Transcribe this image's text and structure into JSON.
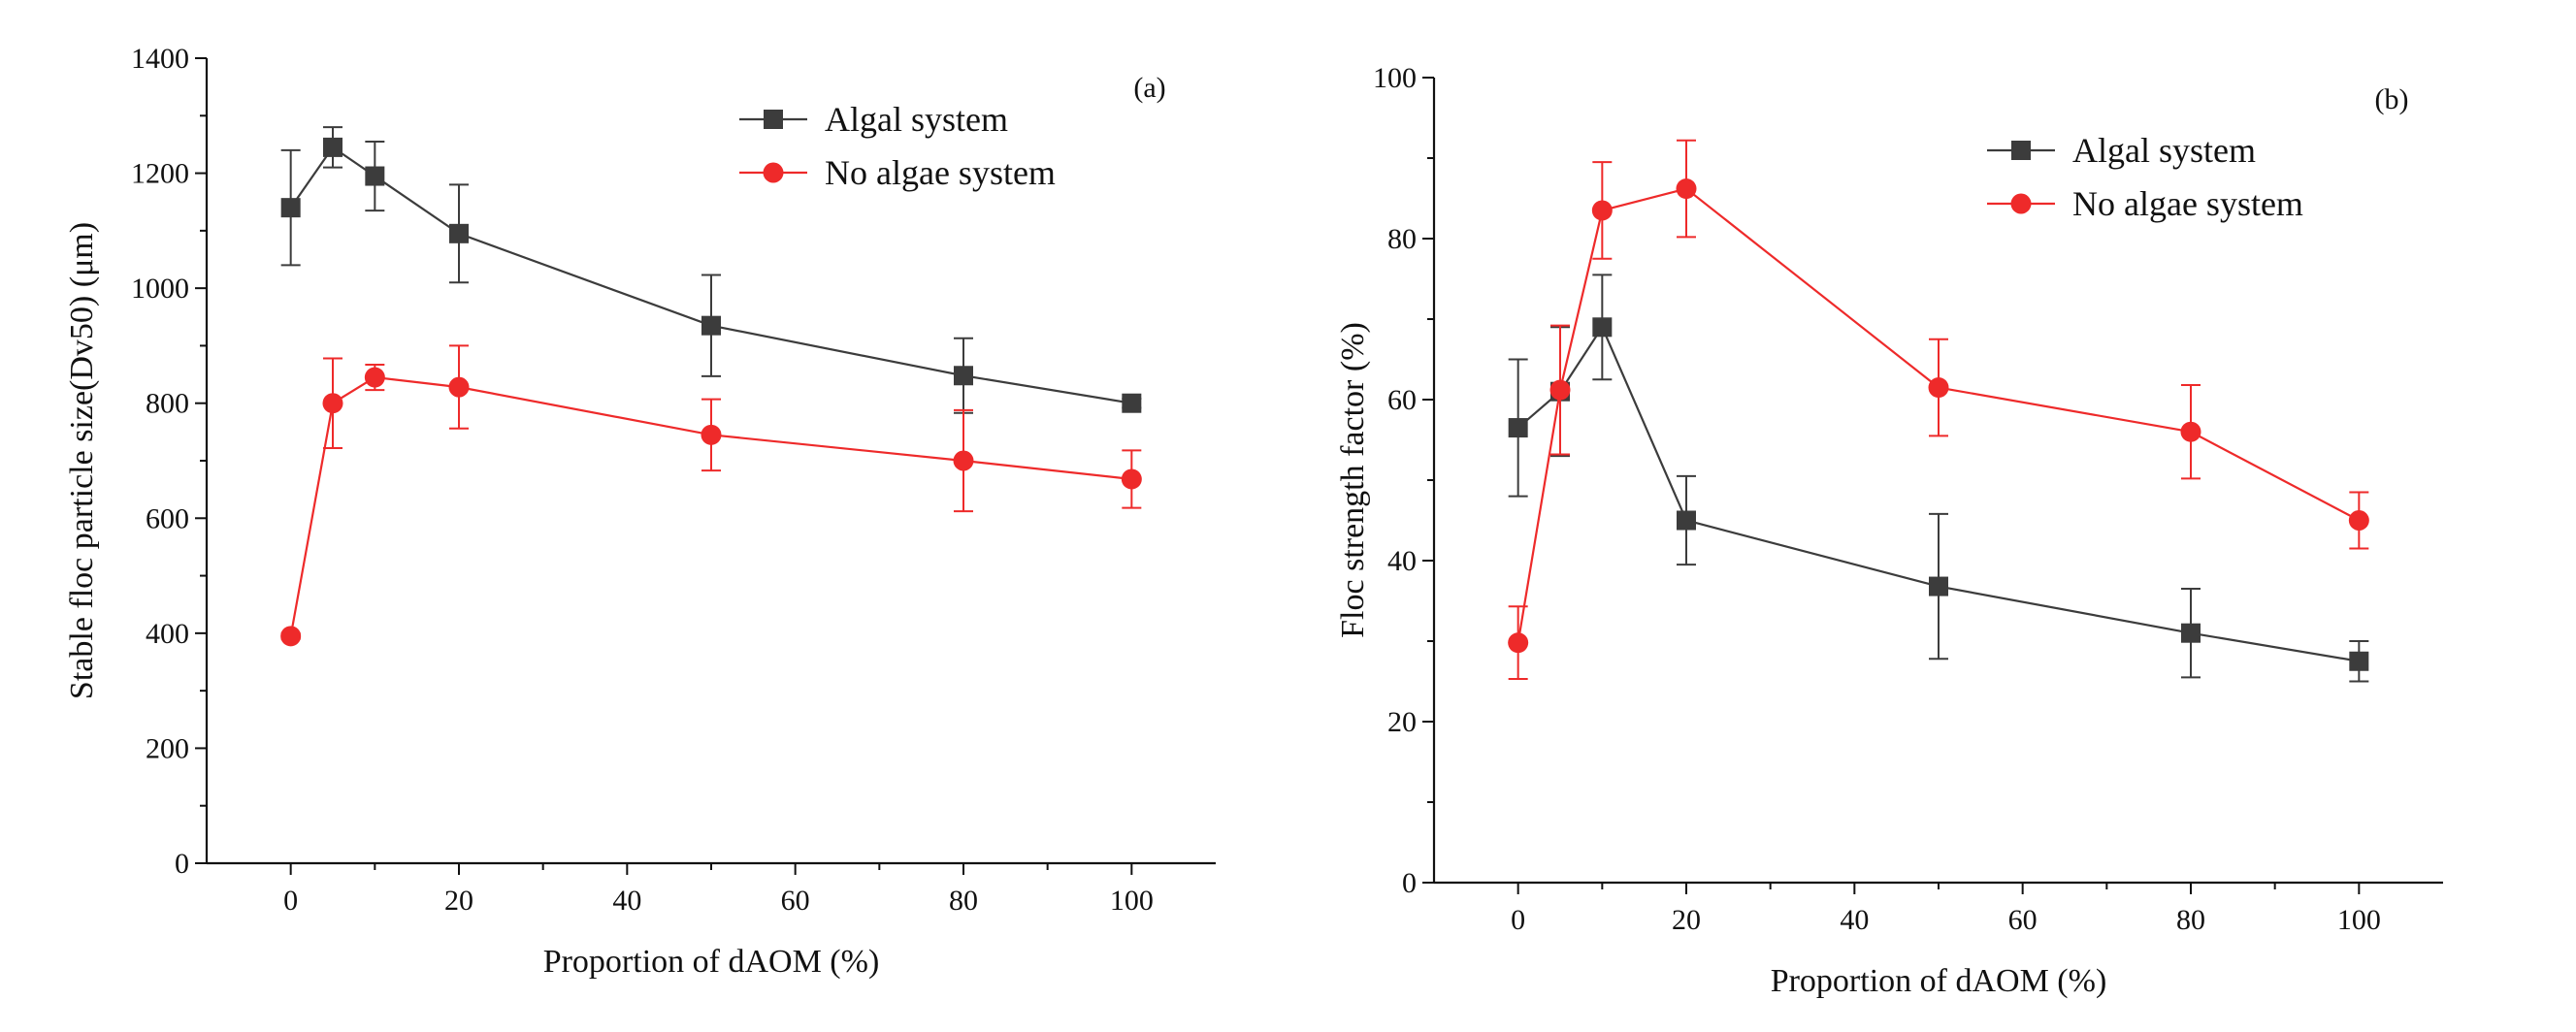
{
  "colors": {
    "algal": "#3c3c3c",
    "no_algae": "#ee2a2a",
    "axis": "#111111"
  },
  "chart_data": [
    {
      "panel": "(a)",
      "type": "line",
      "xlabel": "Proportion of dAOM (%)",
      "ylabel": "Stable floc particle size(Dv50) (μm)",
      "xlim": [
        -10,
        110
      ],
      "ylim": [
        0,
        1400
      ],
      "xticks": [
        0,
        20,
        40,
        60,
        80,
        100
      ],
      "yticks": [
        0,
        200,
        400,
        600,
        800,
        1000,
        1200,
        1400
      ],
      "legend_position": "top-right",
      "x": [
        0,
        5,
        10,
        20,
        50,
        80,
        100
      ],
      "series": [
        {
          "name": "Algal system",
          "marker": "square",
          "color": "#3c3c3c",
          "values": [
            1140,
            1245,
            1195,
            1095,
            935,
            848,
            800
          ],
          "errors": [
            100,
            35,
            60,
            85,
            88,
            65,
            8
          ]
        },
        {
          "name": "No algae system",
          "marker": "circle",
          "color": "#ee2a2a",
          "values": [
            395,
            800,
            845,
            828,
            745,
            700,
            668
          ],
          "errors": [
            5,
            78,
            22,
            72,
            62,
            88,
            50
          ]
        }
      ]
    },
    {
      "panel": "(b)",
      "type": "line",
      "xlabel": "Proportion of dAOM (%)",
      "ylabel": "Floc strength factor (%)",
      "xlim": [
        -10,
        110
      ],
      "ylim": [
        0,
        100
      ],
      "xticks": [
        0,
        20,
        40,
        60,
        80,
        100
      ],
      "yticks": [
        0,
        20,
        40,
        60,
        80,
        100
      ],
      "legend_position": "top-right",
      "x": [
        0,
        5,
        10,
        20,
        50,
        80,
        100
      ],
      "series": [
        {
          "name": "Algal system",
          "marker": "square",
          "color": "#3c3c3c",
          "values": [
            56.5,
            61,
            69,
            45,
            36.8,
            31,
            27.5
          ],
          "errors": [
            8.5,
            8,
            6.5,
            5.5,
            9,
            5.5,
            2.5
          ]
        },
        {
          "name": "No algae system",
          "marker": "circle",
          "color": "#ee2a2a",
          "values": [
            29.8,
            61.2,
            83.5,
            86.2,
            61.5,
            56,
            45
          ],
          "errors": [
            4.5,
            8,
            6,
            6,
            6,
            5.8,
            3.5
          ]
        }
      ]
    }
  ]
}
